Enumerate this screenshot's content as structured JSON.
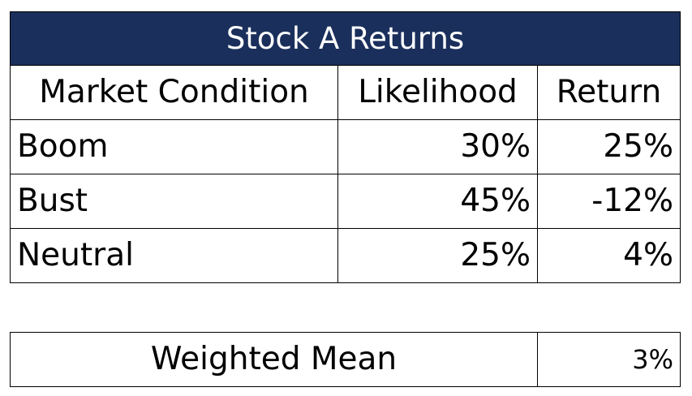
{
  "theme": {
    "title_background": "#1b2f5c",
    "border_color": "#000000"
  },
  "returns_table": {
    "title": "Stock A Returns",
    "headers": {
      "condition": "Market Condition",
      "likelihood": "Likelihood",
      "return": "Return"
    },
    "rows": [
      {
        "condition": "Boom",
        "likelihood": "30%",
        "return": "25%"
      },
      {
        "condition": "Bust",
        "likelihood": "45%",
        "return": "-12%"
      },
      {
        "condition": "Neutral",
        "likelihood": "25%",
        "return": "4%"
      }
    ]
  },
  "summary": {
    "label": "Weighted Mean",
    "value": "3%"
  }
}
